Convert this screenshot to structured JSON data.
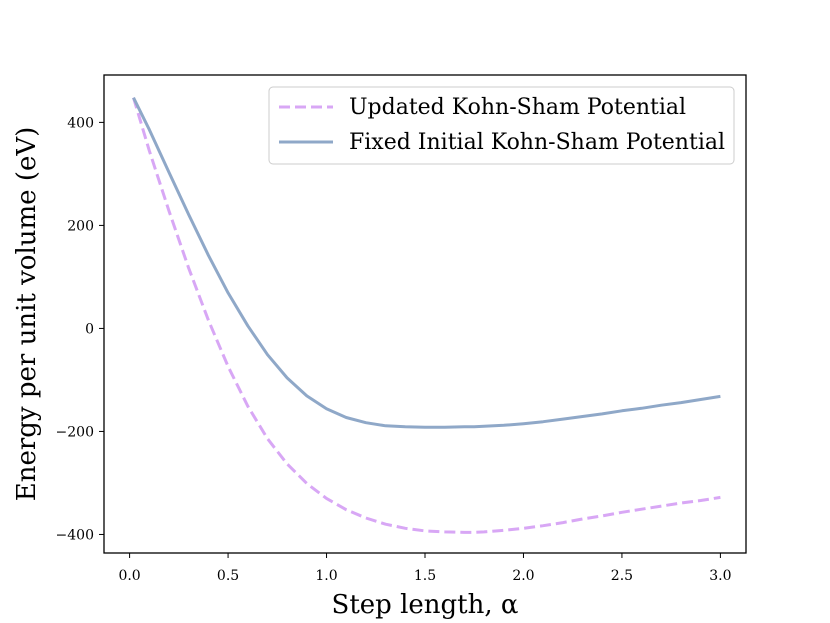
{
  "chart_data": {
    "type": "line",
    "xlabel": "Step length, α",
    "ylabel": "Energy per unit volume (eV)",
    "xlim": [
      -0.13,
      3.13
    ],
    "ylim": [
      -436,
      492
    ],
    "x_ticks": [
      "0.0",
      "0.5",
      "1.0",
      "1.5",
      "2.0",
      "2.5",
      "3.0"
    ],
    "y_ticks": [
      "−400",
      "−200",
      "0",
      "200",
      "400"
    ],
    "legend_position": "upper right",
    "series": [
      {
        "name": "Updated Kohn-Sham Potential",
        "color": "#d8a7f5",
        "style": "dashed",
        "x": [
          0.02,
          0.1,
          0.2,
          0.3,
          0.4,
          0.5,
          0.6,
          0.7,
          0.8,
          0.9,
          1.0,
          1.1,
          1.2,
          1.3,
          1.4,
          1.5,
          1.6,
          1.7,
          1.75,
          1.8,
          1.9,
          2.0,
          2.1,
          2.2,
          2.3,
          2.4,
          2.5,
          2.6,
          2.7,
          2.8,
          2.9,
          3.0
        ],
        "y": [
          448,
          345,
          228,
          117,
          16,
          -74,
          -151,
          -214,
          -263,
          -301,
          -330,
          -352,
          -368,
          -380,
          -388,
          -393,
          -395,
          -396,
          -396,
          -395,
          -392,
          -388,
          -383,
          -377,
          -370,
          -364,
          -357,
          -351,
          -345,
          -339,
          -334,
          -328
        ]
      },
      {
        "name": "Fixed Initial Kohn-Sham Potential",
        "color": "#8fa8c8",
        "style": "solid",
        "x": [
          0.02,
          0.1,
          0.2,
          0.3,
          0.4,
          0.5,
          0.6,
          0.7,
          0.8,
          0.9,
          1.0,
          1.1,
          1.2,
          1.3,
          1.4,
          1.5,
          1.6,
          1.7,
          1.75,
          1.8,
          1.9,
          2.0,
          2.1,
          2.2,
          2.3,
          2.4,
          2.5,
          2.6,
          2.7,
          2.8,
          2.9,
          3.0
        ],
        "y": [
          448,
          386,
          303,
          221,
          142,
          69,
          5,
          -51,
          -96,
          -131,
          -156,
          -173,
          -183,
          -189,
          -191,
          -192,
          -192,
          -191,
          -191,
          -190,
          -188,
          -185,
          -181,
          -176,
          -171,
          -166,
          -160,
          -155,
          -149,
          -144,
          -138,
          -132
        ]
      }
    ]
  }
}
